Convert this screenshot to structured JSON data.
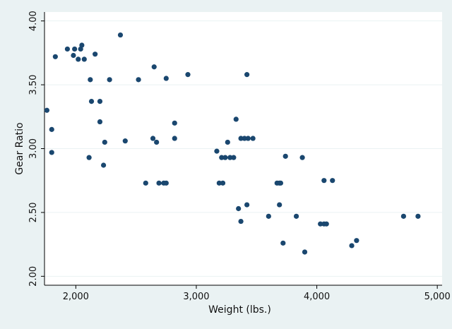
{
  "chart_data": {
    "type": "scatter",
    "xlabel": "Weight (lbs.)",
    "ylabel": "Gear Ratio",
    "xlim": [
      1740,
      5040
    ],
    "ylim": [
      1.93,
      4.07
    ],
    "xticks": [
      2000,
      3000,
      4000,
      5000
    ],
    "xtick_labels": [
      "2,000",
      "3,000",
      "4,000",
      "5,000"
    ],
    "yticks": [
      2.0,
      2.5,
      3.0,
      3.5,
      4.0
    ],
    "ytick_labels": [
      "2.00",
      "2.50",
      "3.00",
      "3.50",
      "4.00"
    ],
    "grid": "horizontal",
    "colors": {
      "marker": "#1a476f",
      "grid": "#eaf2f3",
      "plot_bg": "#ffffff",
      "page_bg": "#eaf2f3"
    },
    "points": [
      [
        1760,
        3.3
      ],
      [
        1800,
        3.15
      ],
      [
        1800,
        2.97
      ],
      [
        1830,
        3.72
      ],
      [
        1930,
        3.78
      ],
      [
        1980,
        3.73
      ],
      [
        1990,
        3.78
      ],
      [
        2020,
        3.7
      ],
      [
        2040,
        3.78
      ],
      [
        2050,
        3.81
      ],
      [
        2070,
        3.7
      ],
      [
        2110,
        2.93
      ],
      [
        2120,
        3.54
      ],
      [
        2130,
        3.37
      ],
      [
        2160,
        3.74
      ],
      [
        2200,
        3.37
      ],
      [
        2200,
        3.21
      ],
      [
        2230,
        2.87
      ],
      [
        2240,
        3.05
      ],
      [
        2280,
        3.54
      ],
      [
        2370,
        3.89
      ],
      [
        2410,
        3.06
      ],
      [
        2520,
        3.54
      ],
      [
        2580,
        2.73
      ],
      [
        2640,
        3.08
      ],
      [
        2650,
        3.64
      ],
      [
        2670,
        3.05
      ],
      [
        2690,
        2.73
      ],
      [
        2730,
        2.73
      ],
      [
        2750,
        2.73
      ],
      [
        2750,
        3.55
      ],
      [
        2820,
        3.08
      ],
      [
        2820,
        3.2
      ],
      [
        2930,
        3.58
      ],
      [
        3170,
        2.98
      ],
      [
        3190,
        2.73
      ],
      [
        3210,
        2.93
      ],
      [
        3220,
        2.73
      ],
      [
        3240,
        2.93
      ],
      [
        3260,
        3.05
      ],
      [
        3280,
        2.93
      ],
      [
        3310,
        2.93
      ],
      [
        3330,
        3.23
      ],
      [
        3350,
        2.53
      ],
      [
        3370,
        2.43
      ],
      [
        3370,
        3.08
      ],
      [
        3400,
        3.08
      ],
      [
        3420,
        3.58
      ],
      [
        3420,
        2.56
      ],
      [
        3430,
        3.08
      ],
      [
        3470,
        3.08
      ],
      [
        3600,
        2.47
      ],
      [
        3670,
        2.73
      ],
      [
        3690,
        2.56
      ],
      [
        3690,
        2.73
      ],
      [
        3700,
        2.73
      ],
      [
        3720,
        2.26
      ],
      [
        3740,
        2.94
      ],
      [
        3830,
        2.47
      ],
      [
        3880,
        2.93
      ],
      [
        3900,
        2.19
      ],
      [
        4030,
        2.41
      ],
      [
        4060,
        2.75
      ],
      [
        4060,
        2.41
      ],
      [
        4080,
        2.41
      ],
      [
        4130,
        2.75
      ],
      [
        4290,
        2.24
      ],
      [
        4330,
        2.28
      ],
      [
        4720,
        2.47
      ],
      [
        4840,
        2.47
      ]
    ]
  }
}
